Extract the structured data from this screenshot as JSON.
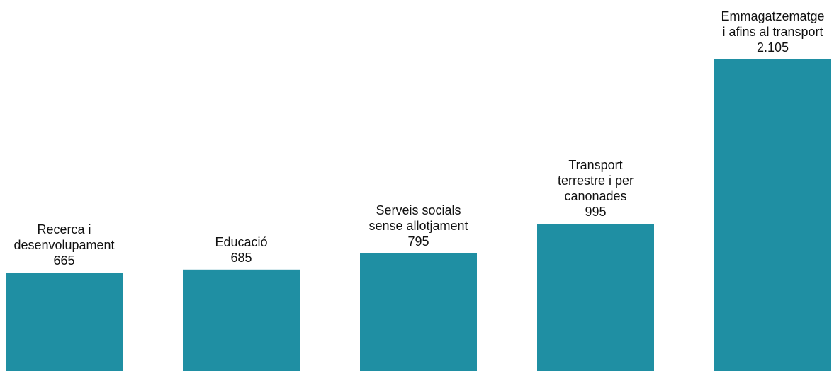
{
  "chart_data": {
    "type": "bar",
    "categories": [
      [
        "Recerca i",
        "desenvolupament"
      ],
      [
        "Educació"
      ],
      [
        "Serveis socials",
        "sense allotjament"
      ],
      [
        "Transport",
        "terrestre i per",
        "canonades"
      ],
      [
        "Emmagatzematge",
        "i afins al transport"
      ]
    ],
    "value_labels": [
      "665",
      "685",
      "795",
      "995",
      "2.105"
    ],
    "values": [
      665,
      685,
      795,
      995,
      2105
    ],
    "bar_color": "#1f8fa3",
    "grid": false,
    "legend": "none"
  }
}
